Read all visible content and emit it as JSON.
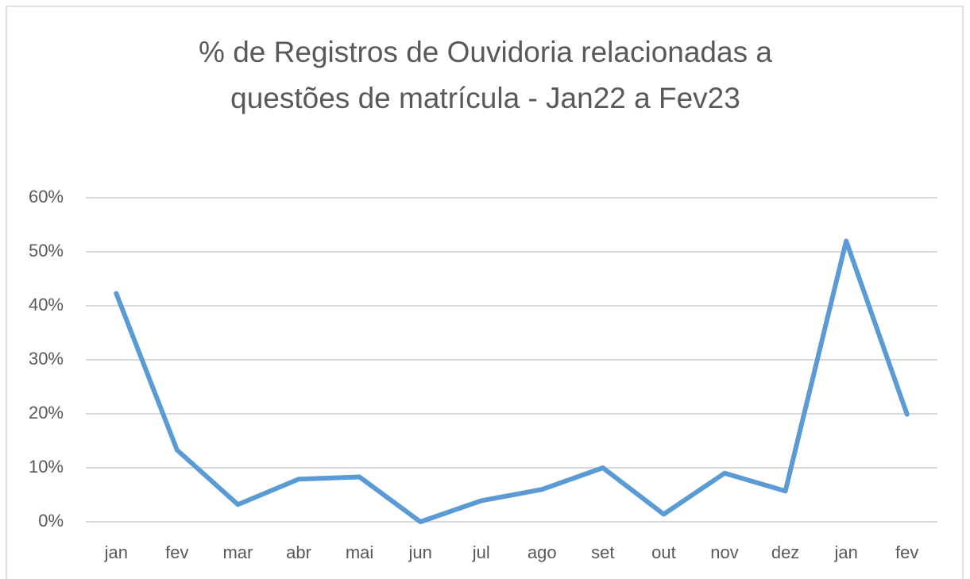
{
  "chart_data": {
    "type": "line",
    "title": [
      "% de Registros de Ouvidoria relacionadas a",
      "questões de matrícula - Jan22 a Fev23"
    ],
    "categories": [
      "jan",
      "fev",
      "mar",
      "abr",
      "mai",
      "jun",
      "jul",
      "ago",
      "set",
      "out",
      "nov",
      "dez",
      "jan",
      "fev"
    ],
    "values": [
      42.3,
      13.3,
      3.2,
      7.9,
      8.3,
      0,
      3.9,
      6.0,
      10.0,
      1.4,
      9.0,
      5.7,
      52.0,
      19.9
    ],
    "color": "#5b9bd5",
    "ylim": [
      0,
      60
    ],
    "yticks": [
      {
        "value": 0,
        "label": "0%"
      },
      {
        "value": 10,
        "label": "10%"
      },
      {
        "value": 20,
        "label": "20%"
      },
      {
        "value": 30,
        "label": "30%"
      },
      {
        "value": 40,
        "label": "40%"
      },
      {
        "value": 50,
        "label": "50%"
      },
      {
        "value": 60,
        "label": "60%"
      }
    ],
    "grid": true
  }
}
